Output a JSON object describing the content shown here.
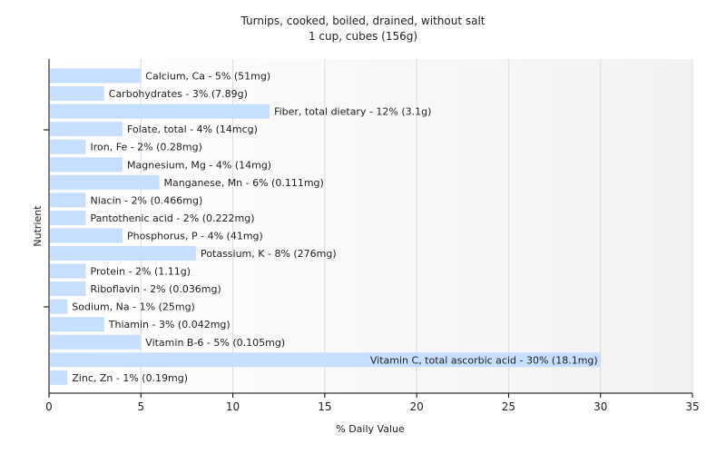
{
  "chart_data": {
    "type": "bar",
    "orientation": "horizontal",
    "title": "Turnips, cooked, boiled, drained, without salt",
    "subtitle": "1 cup, cubes (156g)",
    "xlabel": "% Daily Value",
    "ylabel": "Nutrient",
    "xlim": [
      0,
      35
    ],
    "xticks": [
      0,
      5,
      10,
      15,
      20,
      25,
      30,
      35
    ],
    "grid": true,
    "categories": [
      "Calcium, Ca",
      "Carbohydrates",
      "Fiber, total dietary",
      "Folate, total",
      "Iron, Fe",
      "Magnesium, Mg",
      "Manganese, Mn",
      "Niacin",
      "Pantothenic acid",
      "Phosphorus, P",
      "Potassium, K",
      "Protein",
      "Riboflavin",
      "Sodium, Na",
      "Thiamin",
      "Vitamin B-6",
      "Vitamin C, total ascorbic acid",
      "Zinc, Zn"
    ],
    "values": [
      5,
      3,
      12,
      4,
      2,
      4,
      6,
      2,
      2,
      4,
      8,
      2,
      2,
      1,
      3,
      5,
      30,
      1
    ],
    "bar_labels": [
      "Calcium, Ca - 5% (51mg)",
      "Carbohydrates - 3% (7.89g)",
      "Fiber, total dietary - 12% (3.1g)",
      "Folate, total - 4% (14mcg)",
      "Iron, Fe - 2% (0.28mg)",
      "Magnesium, Mg - 4% (14mg)",
      "Manganese, Mn - 6% (0.111mg)",
      "Niacin - 2% (0.466mg)",
      "Pantothenic acid - 2% (0.222mg)",
      "Phosphorus, P - 4% (41mg)",
      "Potassium, K - 8% (276mg)",
      "Protein - 2% (1.11g)",
      "Riboflavin - 2% (0.036mg)",
      "Sodium, Na - 1% (25mg)",
      "Thiamin - 3% (0.042mg)",
      "Vitamin B-6 - 5% (0.105mg)",
      "Vitamin C, total ascorbic acid - 30% (18.1mg)",
      "Zinc, Zn - 1% (0.19mg)"
    ],
    "colors": {
      "bar": "#c6deff",
      "grid": "#dddddd",
      "axis": "#000000",
      "plot_bg_left": "#ffffff",
      "plot_bg_right": "#f2f2f2"
    }
  }
}
